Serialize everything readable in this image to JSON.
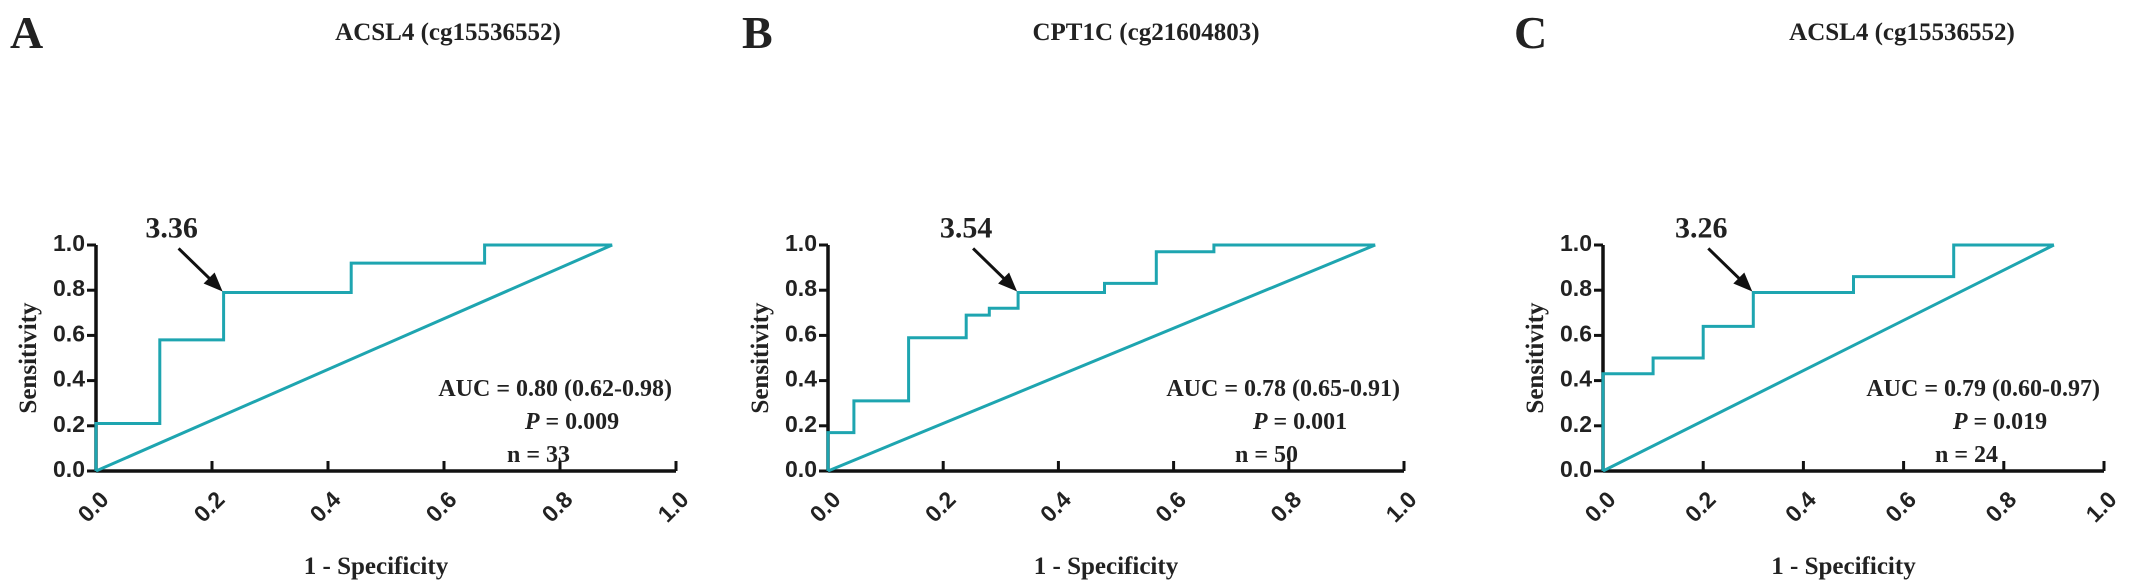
{
  "chart_data": [
    {
      "type": "line",
      "panel_letter": "A",
      "title": "ACSL4 (cg15536552)",
      "xlabel": "1 - Specificity",
      "ylabel": "Sensitivity",
      "xlim": [
        0,
        1
      ],
      "ylim": [
        0,
        1
      ],
      "xticks": [
        "0.0",
        "0.2",
        "0.4",
        "0.6",
        "0.8",
        "1.0"
      ],
      "yticks": [
        "0.0",
        "0.2",
        "0.4",
        "0.6",
        "0.8",
        "1.0"
      ],
      "series": [
        {
          "name": "ROC",
          "x": [
            0,
            0,
            0.11,
            0.11,
            0.22,
            0.22,
            0.44,
            0.44,
            0.67,
            0.67,
            0.89
          ],
          "y": [
            0,
            0.21,
            0.21,
            0.58,
            0.58,
            0.79,
            0.79,
            0.92,
            0.92,
            1.0,
            1.0
          ]
        },
        {
          "name": "reference",
          "x": [
            0,
            0.89
          ],
          "y": [
            0,
            1.0
          ]
        }
      ],
      "cutoff": {
        "label": "3.36",
        "x": 0.22,
        "y": 0.79
      },
      "annotations": [
        "AUC = 0.80 (0.62-0.98)",
        "P",
        " = 0.009",
        "n = 33"
      ]
    },
    {
      "type": "line",
      "panel_letter": "B",
      "title": "CPT1C (cg21604803)",
      "xlabel": "1 - Specificity",
      "ylabel": "Sensitivity",
      "xlim": [
        0,
        1
      ],
      "ylim": [
        0,
        1
      ],
      "xticks": [
        "0.0",
        "0.2",
        "0.4",
        "0.6",
        "0.8",
        "1.0"
      ],
      "yticks": [
        "0.0",
        "0.2",
        "0.4",
        "0.6",
        "0.8",
        "1.0"
      ],
      "series": [
        {
          "name": "ROC",
          "x": [
            0,
            0,
            0.045,
            0.045,
            0.14,
            0.14,
            0.24,
            0.24,
            0.28,
            0.28,
            0.33,
            0.33,
            0.48,
            0.48,
            0.57,
            0.57,
            0.67,
            0.67,
            0.95
          ],
          "y": [
            0,
            0.17,
            0.17,
            0.31,
            0.31,
            0.59,
            0.59,
            0.69,
            0.69,
            0.72,
            0.72,
            0.79,
            0.79,
            0.83,
            0.83,
            0.97,
            0.97,
            1.0,
            1.0
          ]
        },
        {
          "name": "reference",
          "x": [
            0,
            0.95
          ],
          "y": [
            0,
            1.0
          ]
        }
      ],
      "cutoff": {
        "label": "3.54",
        "x": 0.33,
        "y": 0.79
      },
      "annotations": [
        "AUC = 0.78 (0.65-0.91)",
        "P",
        " = 0.001",
        "n = 50"
      ]
    },
    {
      "type": "line",
      "panel_letter": "C",
      "title": "ACSL4 (cg15536552)",
      "xlabel": "1 - Specificity",
      "ylabel": "Sensitivity",
      "xlim": [
        0,
        1
      ],
      "ylim": [
        0,
        1
      ],
      "xticks": [
        "0.0",
        "0.2",
        "0.4",
        "0.6",
        "0.8",
        "1.0"
      ],
      "yticks": [
        "0.0",
        "0.2",
        "0.4",
        "0.6",
        "0.8",
        "1.0"
      ],
      "series": [
        {
          "name": "ROC",
          "x": [
            0,
            0,
            0.1,
            0.1,
            0.2,
            0.2,
            0.3,
            0.3,
            0.5,
            0.5,
            0.7,
            0.7,
            0.9
          ],
          "y": [
            0,
            0.43,
            0.43,
            0.5,
            0.5,
            0.64,
            0.64,
            0.79,
            0.79,
            0.86,
            0.86,
            1.0,
            1.0
          ]
        },
        {
          "name": "reference",
          "x": [
            0,
            0.9
          ],
          "y": [
            0,
            1.0
          ]
        }
      ],
      "cutoff": {
        "label": "3.26",
        "x": 0.3,
        "y": 0.79
      },
      "annotations": [
        "AUC = 0.79 (0.60-0.97)",
        "P",
        " = 0.019",
        "n = 24"
      ]
    }
  ],
  "colors": {
    "roc_line": "#1ea5b0",
    "axis": "#111111"
  }
}
